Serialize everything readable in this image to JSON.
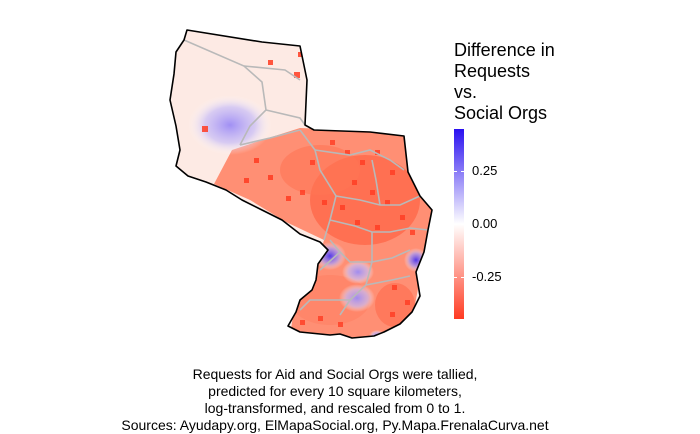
{
  "legend": {
    "title": "Difference in\nRequests\nvs.\nSocial Orgs",
    "ticks": [
      {
        "label": "0.25",
        "value": 0.25
      },
      {
        "label": "0.00",
        "value": 0.0
      },
      {
        "label": "-0.25",
        "value": -0.25
      }
    ],
    "range": [
      -0.45,
      0.45
    ],
    "colors": {
      "low": "#ff3b22",
      "mid": "#ffffff",
      "high": "#2a11f0"
    }
  },
  "caption": {
    "line1": "Requests for Aid and Social Orgs were tallied,",
    "line2": "predicted for every 10 square kilometers,",
    "line3": "log-transformed, and rescaled from 0 to 1.",
    "line4": "Sources: Ayudapy.org, ElMapaSocial.org, Py.Mapa.FrenalaCurva.net"
  }
}
